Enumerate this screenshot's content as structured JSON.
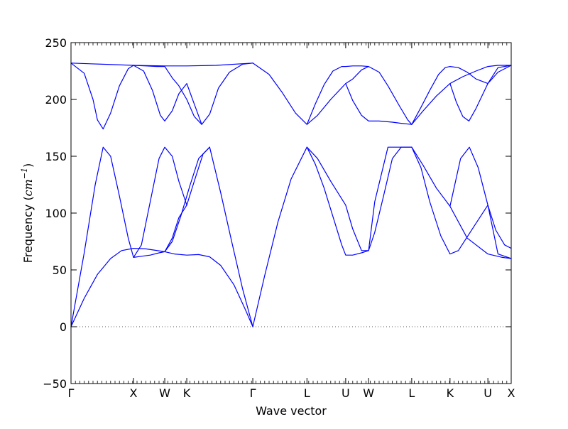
{
  "chart_data": {
    "type": "line",
    "title": "",
    "xlabel": "Wave vector",
    "ylabel": "Frequency (cm⁻¹)",
    "ylabel_parts": {
      "prefix": "Frequency (",
      "unit": "cm",
      "exponent": "−1",
      "suffix": ")"
    },
    "xlim": [
      0,
      100
    ],
    "ylim": [
      -50,
      250
    ],
    "y_ticks": [
      -50,
      0,
      50,
      100,
      150,
      200,
      250
    ],
    "zero_line": {
      "y": 0,
      "style": "dotted",
      "color": "#555555"
    },
    "line_color": "#0000ff",
    "high_symmetry_points": [
      {
        "label": "Γ",
        "x": 0
      },
      {
        "label": "X",
        "x": 14.2
      },
      {
        "label": "W",
        "x": 21.3
      },
      {
        "label": "K",
        "x": 26.3
      },
      {
        "label": "Γ",
        "x": 41.3
      },
      {
        "label": "L",
        "x": 53.6
      },
      {
        "label": "U",
        "x": 62.4
      },
      {
        "label": "W",
        "x": 67.6
      },
      {
        "label": "L",
        "x": 77.4
      },
      {
        "label": "K",
        "x": 86.1
      },
      {
        "label": "U",
        "x": 94.7
      },
      {
        "label": "X",
        "x": 100
      }
    ],
    "minor_tick_step": 1,
    "series": [
      {
        "x": [
          0,
          3,
          6,
          9,
          11.5,
          14.2
        ],
        "values": [
          0,
          25,
          46,
          60,
          67,
          69
        ]
      },
      {
        "x": [
          14.2,
          17,
          21.3,
          23.5,
          26.3,
          29,
          31.5,
          34,
          37,
          39.5,
          41.3
        ],
        "values": [
          69,
          68.5,
          66,
          64,
          63,
          63.5,
          61.5,
          54,
          37,
          16,
          0
        ]
      },
      {
        "x": [
          0,
          3,
          5.5,
          7.3,
          9,
          11,
          13,
          14.2,
          16,
          18,
          20,
          21.3,
          23,
          24.5,
          26.3
        ],
        "values": [
          0,
          65,
          125,
          158,
          150,
          115,
          78,
          61,
          62,
          63,
          65,
          66,
          78,
          96,
          107
        ]
      },
      {
        "x": [
          14.2,
          16,
          18,
          20,
          21.3,
          23,
          24.5,
          26.3,
          28,
          30,
          31.5
        ],
        "values": [
          61,
          72,
          110,
          148,
          158,
          150,
          128,
          107,
          128,
          152,
          158
        ]
      },
      {
        "x": [
          21.3,
          23,
          25,
          27,
          29,
          31.5
        ],
        "values": [
          66,
          75,
          98,
          124,
          148,
          158
        ]
      },
      {
        "x": [
          31.5,
          34,
          36.5,
          39,
          41.3
        ],
        "values": [
          158,
          118,
          75,
          33,
          0
        ]
      },
      {
        "x": [
          41.3,
          44,
          47,
          50,
          53.6
        ],
        "values": [
          0,
          45,
          92,
          130,
          158
        ]
      },
      {
        "x": [
          53.6,
          55.5,
          57.5,
          59.5,
          61.5,
          62.4,
          64,
          66,
          67.6,
          69,
          71,
          73,
          75,
          77.4
        ],
        "values": [
          158,
          143,
          122,
          97,
          72,
          63,
          63,
          65,
          67,
          83,
          115,
          148,
          158,
          158
        ]
      },
      {
        "x": [
          53.6,
          56,
          59,
          62.4,
          64,
          66,
          67.6,
          69,
          72,
          75,
          77.4
        ],
        "values": [
          158,
          148,
          128,
          107,
          86,
          67,
          67,
          110,
          158,
          158,
          158
        ]
      },
      {
        "x": [
          77.4,
          79.5,
          81.5,
          84,
          86.1,
          88,
          90,
          92,
          94.7,
          97,
          100
        ],
        "values": [
          158,
          140,
          110,
          80,
          64,
          67,
          79,
          91,
          107,
          64,
          60
        ]
      },
      {
        "x": [
          77.4,
          80,
          83,
          86.1,
          86.5,
          88.5,
          90.5,
          92.5,
          94.7,
          96.5,
          98.5,
          100
        ],
        "values": [
          158,
          142,
          122,
          106,
          113,
          148,
          158,
          140,
          107,
          85,
          72,
          69
        ]
      },
      {
        "x": [
          86.1,
          90,
          94.7,
          98,
          100
        ],
        "values": [
          106,
          78,
          64,
          61,
          60
        ]
      },
      {
        "x": [
          0,
          3,
          5,
          6,
          7.3,
          9,
          11,
          13,
          14.2
        ],
        "values": [
          232,
          223,
          200,
          182,
          174,
          188,
          212,
          227,
          230
        ]
      },
      {
        "x": [
          0,
          7,
          14.2,
          21.3,
          26.3,
          33,
          41.3
        ],
        "values": [
          232,
          231,
          230,
          229.5,
          229.5,
          230,
          232
        ]
      },
      {
        "x": [
          14.2,
          16.5,
          18.5,
          20.3,
          21.3,
          23,
          24.5,
          26.3,
          28,
          29.7,
          31.5,
          33.5,
          36,
          39,
          41.3
        ],
        "values": [
          230,
          225,
          208,
          186,
          181,
          190,
          205,
          214,
          196,
          178,
          187,
          210,
          224,
          231,
          232
        ]
      },
      {
        "x": [
          14.2,
          17,
          19.5,
          21.3,
          23,
          24.5,
          26.3,
          28,
          29.7
        ],
        "values": [
          230,
          229.5,
          229,
          229,
          219,
          212,
          200,
          185,
          178
        ]
      },
      {
        "x": [
          41.3,
          45,
          48,
          51,
          53.6,
          56,
          59,
          62.4,
          64,
          66,
          67.6
        ],
        "values": [
          232,
          222,
          206,
          188,
          178,
          186,
          200,
          214,
          218,
          226,
          229
        ]
      },
      {
        "x": [
          53.6,
          55.5,
          57.5,
          59.5,
          61.5,
          62.4,
          64,
          66,
          67.6
        ],
        "values": [
          178,
          196,
          213,
          225,
          229,
          229,
          229.5,
          229.5,
          229
        ]
      },
      {
        "x": [
          62.4,
          64,
          66,
          67.6,
          70,
          73,
          75,
          77.4
        ],
        "values": [
          214,
          199,
          186,
          181,
          181,
          180,
          179,
          178
        ]
      },
      {
        "x": [
          67.6,
          70,
          72,
          74.5,
          76.5,
          77.4
        ],
        "values": [
          229,
          224,
          212,
          195,
          182,
          178
        ]
      },
      {
        "x": [
          77.4,
          79.5,
          81.5,
          83.5,
          85,
          86.1,
          88,
          90,
          92,
          94.7,
          97,
          100
        ],
        "values": [
          178,
          193,
          208,
          222,
          228,
          229,
          228,
          224,
          218,
          214,
          228,
          230
        ]
      },
      {
        "x": [
          77.4,
          80,
          83,
          86.1,
          87.5,
          89,
          90.4,
          92,
          94.7,
          97,
          100
        ],
        "values": [
          178,
          190,
          203,
          214,
          198,
          185,
          181,
          192,
          214,
          224,
          230
        ]
      },
      {
        "x": [
          86.1,
          89,
          92,
          94.7,
          97,
          100
        ],
        "values": [
          214,
          220,
          225,
          229,
          230,
          230
        ]
      }
    ]
  }
}
